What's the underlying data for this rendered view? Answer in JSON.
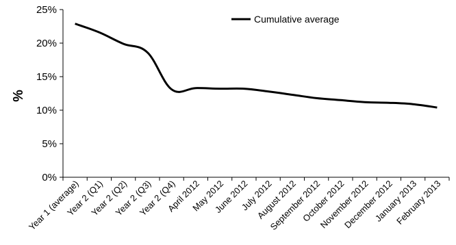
{
  "chart_data": {
    "type": "line",
    "title": "",
    "xlabel": "",
    "ylabel": "%",
    "ylim": [
      0,
      25
    ],
    "yticks": [
      "0%",
      "5%",
      "10%",
      "15%",
      "20%",
      "25%"
    ],
    "grid": false,
    "legend_position": "top-center",
    "categories": [
      "Year 1 (average)",
      "Year 2 (Q1)",
      "Year 2 (Q2)",
      "Year 2 (Q3)",
      "Year 2 (Q4)",
      "April 2012",
      "May 2012",
      "June 2012",
      "July 2012",
      "August 2012",
      "September 2012",
      "October 2012",
      "November 2012",
      "December 2012",
      "January 2013",
      "February 2013"
    ],
    "series": [
      {
        "name": "Cumulative average",
        "color": "#000000",
        "values": [
          22.9,
          21.6,
          19.9,
          18.6,
          13.1,
          13.3,
          13.2,
          13.2,
          12.8,
          12.3,
          11.8,
          11.5,
          11.2,
          11.1,
          10.9,
          10.4
        ]
      }
    ]
  }
}
